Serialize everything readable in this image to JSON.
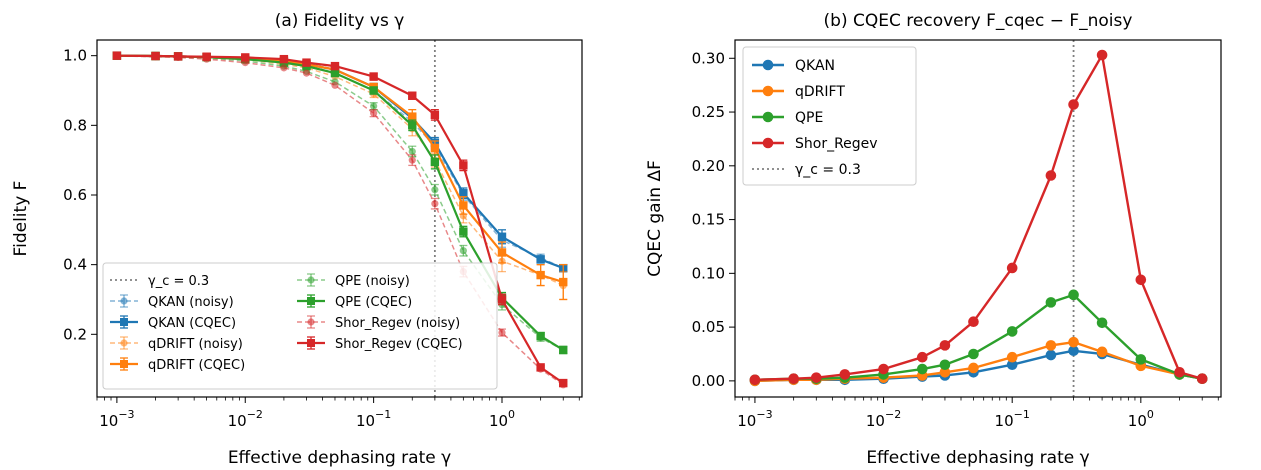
{
  "chart_data": [
    {
      "type": "line",
      "title": "(a) Fidelity vs γ",
      "xlabel": "Effective dephasing rate γ",
      "ylabel": "Fidelity F",
      "xscale": "log",
      "xlim": [
        0.0007,
        4.2
      ],
      "ylim": [
        0.02,
        1.045
      ],
      "x": [
        0.001,
        0.002,
        0.003,
        0.005,
        0.01,
        0.02,
        0.03,
        0.05,
        0.1,
        0.2,
        0.3,
        0.5,
        1.0,
        2.0,
        3.0
      ],
      "yticks": [
        0.2,
        0.4,
        0.6,
        0.8,
        1.0
      ],
      "ytick_labels": [
        "0.2",
        "0.4",
        "0.6",
        "0.8",
        "1.0"
      ],
      "xticks": [
        0.001,
        0.01,
        0.1,
        1
      ],
      "xtick_labels": [
        [
          "10",
          "−3"
        ],
        [
          "10",
          "−2"
        ],
        [
          "10",
          "−1"
        ],
        [
          "10",
          "0"
        ]
      ],
      "vline": {
        "x": 0.3,
        "label": "γ_c = 0.3"
      },
      "legend_position": "lower-left",
      "series": [
        {
          "name": "QKAN (noisy)",
          "color": "#1f77b4",
          "style": "noisy",
          "values": [
            1.0,
            0.999,
            0.998,
            0.996,
            0.99,
            0.98,
            0.97,
            0.95,
            0.9,
            0.81,
            0.74,
            0.6,
            0.47,
            0.42,
            0.39
          ],
          "err": [
            0,
            0,
            0,
            0,
            0,
            0,
            0,
            0,
            0.01,
            0.015,
            0.015,
            0.015,
            0.02,
            0.01,
            0.01
          ]
        },
        {
          "name": "QKAN (CQEC)",
          "color": "#1f77b4",
          "style": "cqec",
          "values": [
            1.0,
            0.999,
            0.998,
            0.996,
            0.99,
            0.985,
            0.975,
            0.96,
            0.91,
            0.82,
            0.75,
            0.605,
            0.48,
            0.415,
            0.39
          ],
          "err": [
            0,
            0,
            0,
            0,
            0,
            0,
            0,
            0,
            0.01,
            0.015,
            0.015,
            0.015,
            0.02,
            0.01,
            0.01
          ]
        },
        {
          "name": "qDRIFT (noisy)",
          "color": "#ff7f0e",
          "style": "noisy",
          "values": [
            1.0,
            0.999,
            0.998,
            0.995,
            0.99,
            0.975,
            0.965,
            0.94,
            0.89,
            0.79,
            0.7,
            0.54,
            0.41,
            0.37,
            0.34
          ],
          "err": [
            0,
            0,
            0,
            0,
            0,
            0,
            0,
            0,
            0.01,
            0.02,
            0.02,
            0.02,
            0.03,
            0.03,
            0.04
          ]
        },
        {
          "name": "qDRIFT (CQEC)",
          "color": "#ff7f0e",
          "style": "cqec",
          "values": [
            1.0,
            0.999,
            0.998,
            0.996,
            0.99,
            0.985,
            0.975,
            0.96,
            0.91,
            0.825,
            0.735,
            0.57,
            0.435,
            0.37,
            0.35
          ],
          "err": [
            0,
            0,
            0,
            0,
            0,
            0,
            0,
            0,
            0.01,
            0.02,
            0.02,
            0.025,
            0.03,
            0.03,
            0.05
          ]
        },
        {
          "name": "QPE (noisy)",
          "color": "#2ca02c",
          "style": "noisy",
          "values": [
            1.0,
            0.998,
            0.996,
            0.993,
            0.985,
            0.97,
            0.955,
            0.925,
            0.855,
            0.725,
            0.615,
            0.44,
            0.285,
            0.19,
            0.155
          ],
          "err": [
            0,
            0,
            0,
            0,
            0,
            0,
            0,
            0,
            0.01,
            0.015,
            0.015,
            0.015,
            0.015,
            0.01,
            0.01
          ]
        },
        {
          "name": "QPE (CQEC)",
          "color": "#2ca02c",
          "style": "cqec",
          "values": [
            1.0,
            0.999,
            0.998,
            0.996,
            0.99,
            0.98,
            0.97,
            0.95,
            0.9,
            0.8,
            0.695,
            0.495,
            0.305,
            0.195,
            0.155
          ],
          "err": [
            0,
            0,
            0,
            0,
            0,
            0,
            0,
            0,
            0.01,
            0.015,
            0.02,
            0.015,
            0.015,
            0.01,
            0.01
          ]
        },
        {
          "name": "Shor_Regev (noisy)",
          "color": "#d62728",
          "style": "noisy",
          "values": [
            0.999,
            0.997,
            0.995,
            0.99,
            0.98,
            0.965,
            0.95,
            0.915,
            0.835,
            0.7,
            0.575,
            0.38,
            0.205,
            0.1,
            0.055
          ],
          "err": [
            0,
            0,
            0,
            0,
            0,
            0,
            0,
            0,
            0.01,
            0.015,
            0.015,
            0.015,
            0.01,
            0.005,
            0.005
          ]
        },
        {
          "name": "Shor_Regev (CQEC)",
          "color": "#d62728",
          "style": "cqec",
          "values": [
            1.0,
            0.999,
            0.998,
            0.997,
            0.995,
            0.99,
            0.98,
            0.97,
            0.94,
            0.885,
            0.83,
            0.685,
            0.3,
            0.105,
            0.06
          ],
          "err": [
            0,
            0,
            0,
            0,
            0,
            0,
            0,
            0,
            0.01,
            0.01,
            0.015,
            0.015,
            0.015,
            0.005,
            0.005
          ]
        }
      ]
    },
    {
      "type": "line",
      "title": "(b) CQEC recovery F_cqec − F_noisy",
      "xlabel": "Effective dephasing rate γ",
      "ylabel": "CQEC gain ΔF",
      "xscale": "log",
      "xlim": [
        0.0007,
        4.2
      ],
      "ylim": [
        -0.015,
        0.317
      ],
      "x": [
        0.001,
        0.002,
        0.003,
        0.005,
        0.01,
        0.02,
        0.03,
        0.05,
        0.1,
        0.2,
        0.3,
        0.5,
        1.0,
        2.0,
        3.0
      ],
      "yticks": [
        0.0,
        0.05,
        0.1,
        0.15,
        0.2,
        0.25,
        0.3
      ],
      "ytick_labels": [
        "0.00",
        "0.05",
        "0.10",
        "0.15",
        "0.20",
        "0.25",
        "0.30"
      ],
      "xticks": [
        0.001,
        0.01,
        0.1,
        1
      ],
      "xtick_labels": [
        [
          "10",
          "−3"
        ],
        [
          "10",
          "−2"
        ],
        [
          "10",
          "−1"
        ],
        [
          "10",
          "0"
        ]
      ],
      "vline": {
        "x": 0.3,
        "label": "γ_c = 0.3"
      },
      "legend_position": "top-left",
      "series": [
        {
          "name": "QKAN",
          "color": "#1f77b4",
          "values": [
            0.0,
            0.001,
            0.001,
            0.001,
            0.002,
            0.004,
            0.005,
            0.008,
            0.015,
            0.024,
            0.028,
            0.025,
            0.015,
            0.006,
            0.002
          ]
        },
        {
          "name": "qDRIFT",
          "color": "#ff7f0e",
          "values": [
            0.0,
            0.001,
            0.001,
            0.002,
            0.003,
            0.005,
            0.008,
            0.012,
            0.022,
            0.033,
            0.036,
            0.027,
            0.014,
            0.006,
            0.002
          ]
        },
        {
          "name": "QPE",
          "color": "#2ca02c",
          "values": [
            0.001,
            0.002,
            0.002,
            0.003,
            0.006,
            0.011,
            0.015,
            0.025,
            0.046,
            0.073,
            0.08,
            0.054,
            0.02,
            0.006,
            0.002
          ]
        },
        {
          "name": "Shor_Regev",
          "color": "#d62728",
          "values": [
            0.001,
            0.002,
            0.003,
            0.006,
            0.011,
            0.022,
            0.033,
            0.055,
            0.105,
            0.191,
            0.257,
            0.303,
            0.094,
            0.008,
            0.002
          ]
        }
      ]
    }
  ]
}
